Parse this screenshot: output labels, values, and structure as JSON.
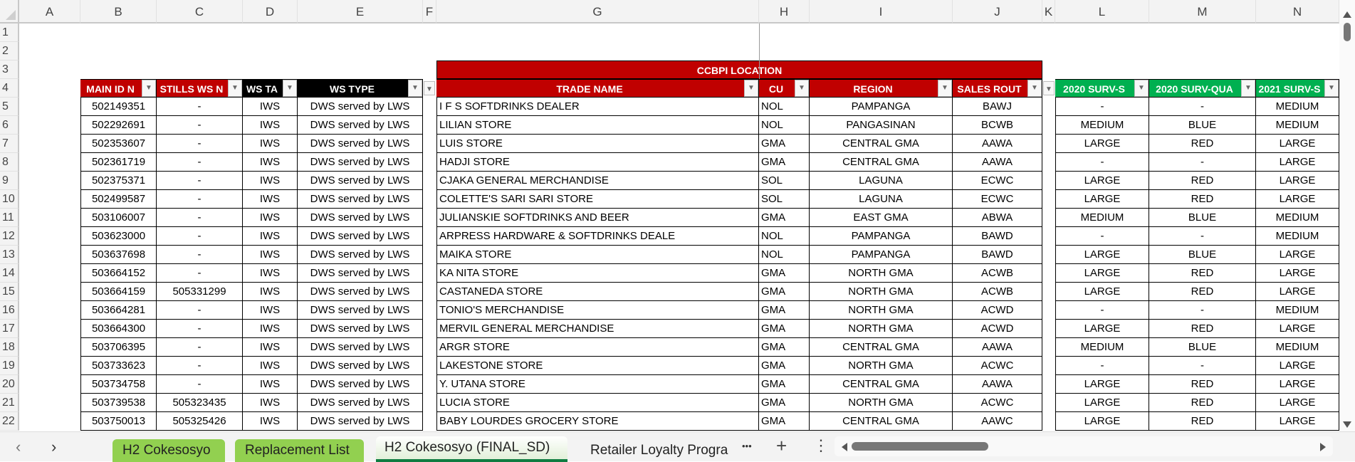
{
  "columns": [
    "A",
    "B",
    "C",
    "D",
    "E",
    "F",
    "G",
    "H",
    "I",
    "J",
    "K",
    "L",
    "M",
    "N"
  ],
  "row_numbers": [
    1,
    2,
    3,
    4,
    5,
    6,
    7,
    8,
    9,
    10,
    11,
    12,
    13,
    14,
    15,
    16,
    17,
    18,
    19,
    20,
    21,
    22
  ],
  "banner": "CCBPI LOCATION",
  "headers": [
    "MAIN ID N",
    "STILLS WS N",
    "WS TA",
    "WS TYPE",
    "TRADE NAME",
    "CU",
    "REGION",
    "SALES ROUT",
    "2020 SURV-S",
    "2020 SURV-QUA",
    "2021 SURV-S"
  ],
  "colors": {
    "red_header": "#c00000",
    "black_header": "#000000",
    "green_header": "#00b050",
    "tab_green": "#92d050",
    "active_tab_accent": "#107c41"
  },
  "rows": [
    [
      "502149351",
      "-",
      "IWS",
      "DWS served by LWS",
      "I F S SOFTDRINKS DEALER",
      "NOL",
      "PAMPANGA",
      "BAWJ",
      "-",
      "-",
      "MEDIUM"
    ],
    [
      "502292691",
      "-",
      "IWS",
      "DWS served by LWS",
      "LILIAN STORE",
      "NOL",
      "PANGASINAN",
      "BCWB",
      "MEDIUM",
      "BLUE",
      "MEDIUM"
    ],
    [
      "502353607",
      "-",
      "IWS",
      "DWS served by LWS",
      "LUIS STORE",
      "GMA",
      "CENTRAL GMA",
      "AAWA",
      "LARGE",
      "RED",
      "LARGE"
    ],
    [
      "502361719",
      "-",
      "IWS",
      "DWS served by LWS",
      "HADJI STORE",
      "GMA",
      "CENTRAL GMA",
      "AAWA",
      "-",
      "-",
      "LARGE"
    ],
    [
      "502375371",
      "-",
      "IWS",
      "DWS served by LWS",
      "CJAKA GENERAL MERCHANDISE",
      "SOL",
      "LAGUNA",
      "ECWC",
      "LARGE",
      "RED",
      "LARGE"
    ],
    [
      "502499587",
      "-",
      "IWS",
      "DWS served by LWS",
      "COLETTE'S SARI SARI STORE",
      "SOL",
      "LAGUNA",
      "ECWC",
      "LARGE",
      "RED",
      "LARGE"
    ],
    [
      "503106007",
      "-",
      "IWS",
      "DWS served by LWS",
      "JULIANSKIE SOFTDRINKS AND BEER",
      "GMA",
      "EAST GMA",
      "ABWA",
      "MEDIUM",
      "BLUE",
      "MEDIUM"
    ],
    [
      "503623000",
      "-",
      "IWS",
      "DWS served by LWS",
      "ARPRESS HARDWARE & SOFTDRINKS DEALE",
      "NOL",
      "PAMPANGA",
      "BAWD",
      "-",
      "-",
      "MEDIUM"
    ],
    [
      "503637698",
      "-",
      "IWS",
      "DWS served by LWS",
      "MAIKA STORE",
      "NOL",
      "PAMPANGA",
      "BAWD",
      "LARGE",
      "BLUE",
      "LARGE"
    ],
    [
      "503664152",
      "-",
      "IWS",
      "DWS served by LWS",
      "KA NITA STORE",
      "GMA",
      "NORTH GMA",
      "ACWB",
      "LARGE",
      "RED",
      "LARGE"
    ],
    [
      "503664159",
      "505331299",
      "IWS",
      "DWS served by LWS",
      "CASTANEDA STORE",
      "GMA",
      "NORTH GMA",
      "ACWB",
      "LARGE",
      "RED",
      "LARGE"
    ],
    [
      "503664281",
      "-",
      "IWS",
      "DWS served by LWS",
      "TONIO'S MERCHANDISE",
      "GMA",
      "NORTH GMA",
      "ACWD",
      "-",
      "-",
      "MEDIUM"
    ],
    [
      "503664300",
      "-",
      "IWS",
      "DWS served by LWS",
      "MERVIL GENERAL MERCHANDISE",
      "GMA",
      "NORTH GMA",
      "ACWD",
      "LARGE",
      "RED",
      "LARGE"
    ],
    [
      "503706395",
      "-",
      "IWS",
      "DWS served by LWS",
      "ARGR STORE",
      "GMA",
      "CENTRAL GMA",
      "AAWA",
      "MEDIUM",
      "BLUE",
      "MEDIUM"
    ],
    [
      "503733623",
      "-",
      "IWS",
      "DWS served by LWS",
      "LAKESTONE STORE",
      "GMA",
      "NORTH GMA",
      "ACWC",
      "-",
      "-",
      "LARGE"
    ],
    [
      "503734758",
      "-",
      "IWS",
      "DWS served by LWS",
      "Y. UTANA STORE",
      "GMA",
      "CENTRAL GMA",
      "AAWA",
      "LARGE",
      "RED",
      "LARGE"
    ],
    [
      "503739538",
      "505323435",
      "IWS",
      "DWS served by LWS",
      "LUCIA STORE",
      "GMA",
      "NORTH GMA",
      "ACWC",
      "LARGE",
      "RED",
      "LARGE"
    ],
    [
      "503750013",
      "505325426",
      "IWS",
      "DWS served by LWS",
      "BABY LOURDES GROCERY STORE",
      "GMA",
      "CENTRAL GMA",
      "AAWC",
      "LARGE",
      "RED",
      "LARGE"
    ]
  ],
  "sheet_tabs": [
    {
      "label": "H2 Cokesosyo",
      "state": "colored"
    },
    {
      "label": "Replacement List",
      "state": "colored"
    },
    {
      "label": "H2 Cokesosyo (FINAL_SD)",
      "state": "active"
    },
    {
      "label": "Retailer Loyalty Progra",
      "state": "normal"
    }
  ],
  "tab_nav": {
    "prev": "‹",
    "next": "›",
    "more": "•••",
    "add": "+",
    "options": "⋮"
  }
}
